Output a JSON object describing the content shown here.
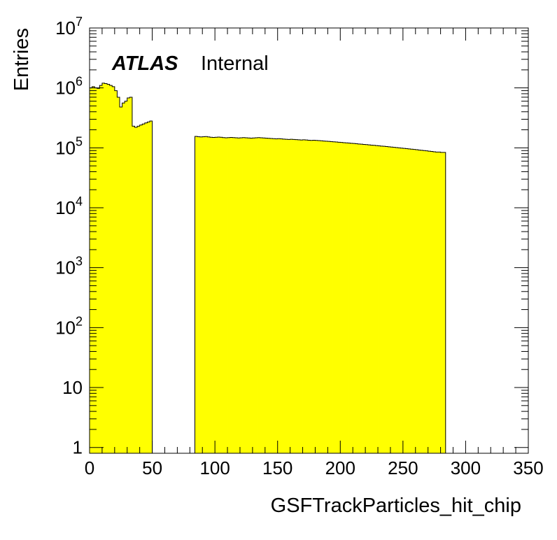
{
  "chart_data": {
    "type": "bar",
    "style": "histogram",
    "fill_color": "#ffff00",
    "line_color": "#000000",
    "ylabel": "Entries",
    "xlabel": "GSFTrackParticles_hit_chip",
    "annotation": {
      "bold": "ATLAS",
      "normal": "Internal"
    },
    "xlim": [
      0,
      350
    ],
    "ylim": [
      0.8,
      10000000
    ],
    "yscale": "log",
    "grid": false,
    "x_ticks": [
      0,
      50,
      100,
      150,
      200,
      250,
      300,
      350
    ],
    "x_tick_labels": [
      "0",
      "50",
      "100",
      "150",
      "200",
      "250",
      "300",
      "350"
    ],
    "y_ticks": [
      {
        "value": 1,
        "base": "1",
        "exp": ""
      },
      {
        "value": 10,
        "base": "10",
        "exp": ""
      },
      {
        "value": 100,
        "base": "10",
        "exp": "2"
      },
      {
        "value": 1000,
        "base": "10",
        "exp": "3"
      },
      {
        "value": 10000,
        "base": "10",
        "exp": "4"
      },
      {
        "value": 100000,
        "base": "10",
        "exp": "5"
      },
      {
        "value": 1000000,
        "base": "10",
        "exp": "6"
      },
      {
        "value": 10000000,
        "base": "10",
        "exp": "7"
      }
    ],
    "bin_width": 2,
    "segments": [
      {
        "start": 0,
        "values": [
          1000000,
          1050000,
          1000000,
          980000,
          1100000,
          1200000,
          1180000,
          1150000,
          1100000,
          1050000,
          900000,
          700000,
          480000,
          560000,
          600000,
          680000,
          700000,
          230000,
          220000,
          230000,
          240000,
          250000,
          260000,
          270000,
          280000
        ]
      },
      {
        "start": 84,
        "values": [
          155000,
          153000,
          152000,
          153000,
          154000,
          152000,
          150000,
          149000,
          150000,
          151000,
          150000,
          148000,
          147000,
          148000,
          149000,
          148000,
          147000,
          146000,
          147000,
          148000,
          147000,
          146000,
          145000,
          146000,
          147000,
          148000,
          147000,
          146000,
          145000,
          144000,
          143000,
          142000,
          141000,
          142000,
          141000,
          140000,
          139000,
          138000,
          139000,
          138000,
          137000,
          136000,
          135000,
          136000,
          135000,
          134000,
          133000,
          134000,
          133000,
          132000,
          131000,
          130000,
          129000,
          128000,
          127000,
          126000,
          125000,
          124000,
          123000,
          122000,
          121000,
          120000,
          119000,
          118000,
          117000,
          116000,
          115000,
          114000,
          113000,
          112000,
          111000,
          110000,
          109000,
          108000,
          107000,
          106000,
          105000,
          104000,
          103000,
          102000,
          101000,
          100000,
          99000,
          98000,
          97000,
          96000,
          95000,
          94000,
          93000,
          92000,
          91000,
          90000,
          89000,
          88000,
          87000,
          86000,
          85000,
          85000,
          84000,
          84000
        ]
      }
    ]
  }
}
